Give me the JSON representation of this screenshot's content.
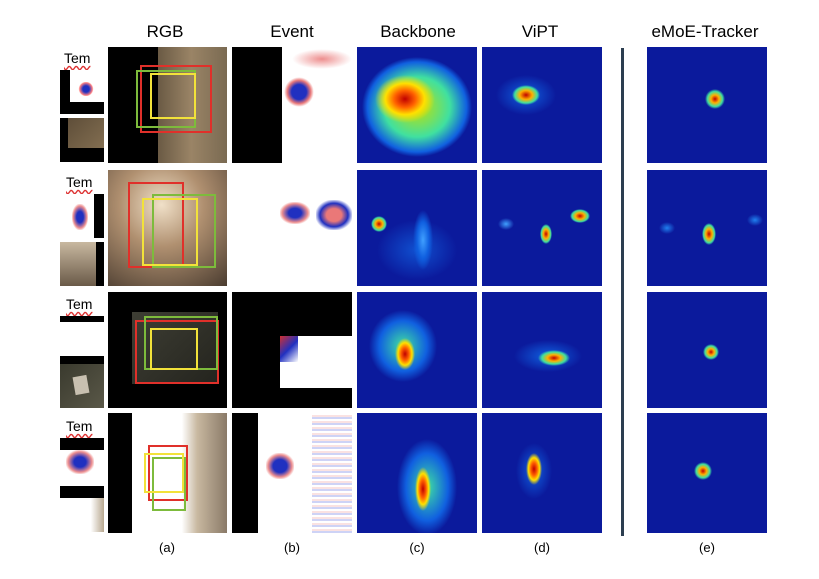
{
  "columns": {
    "rgb": "RGB",
    "event": "Event",
    "backbone": "Backbone",
    "vipt": "ViPT",
    "emoe": "eMoE-Tracker"
  },
  "captions": {
    "a": "(a)",
    "b": "(b)",
    "c": "(c)",
    "d": "(d)",
    "e": "(e)"
  },
  "template_label": "Tem",
  "colors": {
    "box_red": "#e0302a",
    "box_green": "#7dbb3c",
    "box_yellow": "#f2e23a",
    "heat_bg": "#0b1a9c",
    "separator": "#2c3e50"
  }
}
